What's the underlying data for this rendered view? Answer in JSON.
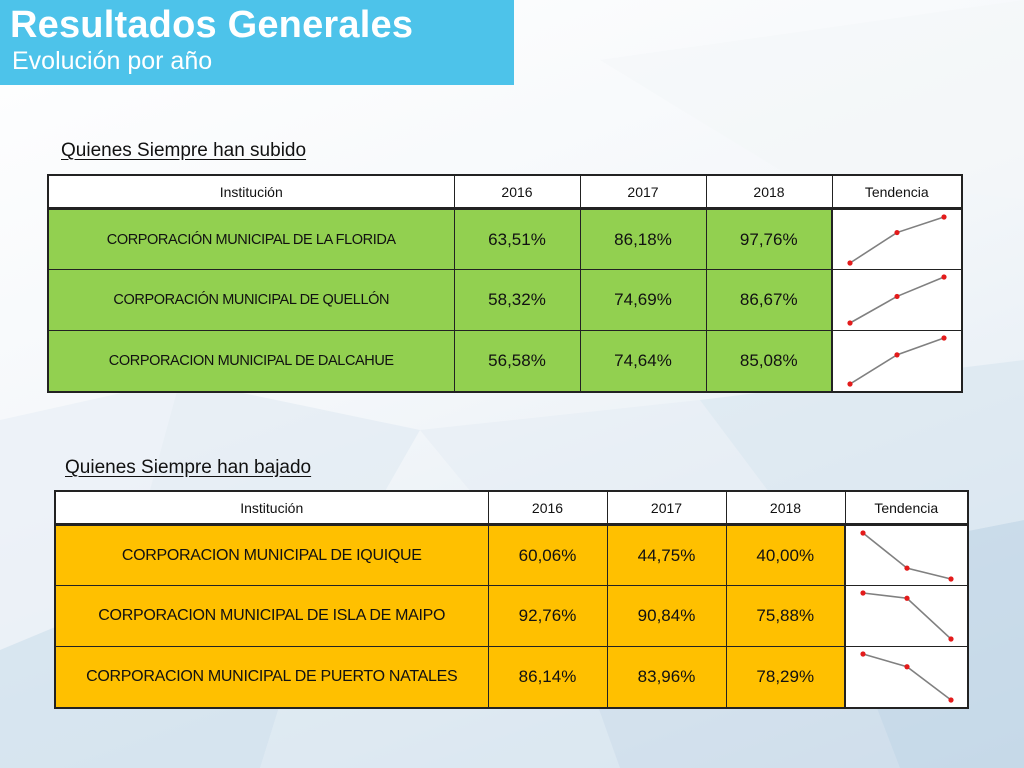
{
  "header": {
    "title": "Resultados Generales",
    "subtitle": "Evolución por año"
  },
  "sections": [
    {
      "heading": "Quienes Siempre han subido",
      "columns": [
        "Institución",
        "2016",
        "2017",
        "2018",
        "Tendencia"
      ],
      "rows": [
        {
          "institution": "CORPORACIÓN MUNICIPAL DE LA FLORIDA",
          "v2016": "63,51%",
          "v2017": "86,18%",
          "v2018": "97,76%",
          "trend": [
            63.51,
            86.18,
            97.76
          ]
        },
        {
          "institution": "CORPORACIÓN MUNICIPAL DE QUELLÓN",
          "v2016": "58,32%",
          "v2017": "74,69%",
          "v2018": "86,67%",
          "trend": [
            58.32,
            74.69,
            86.67
          ]
        },
        {
          "institution": "CORPORACION MUNICIPAL DE DALCAHUE",
          "v2016": "56,58%",
          "v2017": "74,64%",
          "v2018": "85,08%",
          "trend": [
            56.58,
            74.64,
            85.08
          ]
        }
      ],
      "row_color": "#92d050"
    },
    {
      "heading": "Quienes Siempre han bajado",
      "columns": [
        "Institución",
        "2016",
        "2017",
        "2018",
        "Tendencia"
      ],
      "rows": [
        {
          "institution": "CORPORACION MUNICIPAL DE IQUIQUE",
          "v2016": "60,06%",
          "v2017": "44,75%",
          "v2018": "40,00%",
          "trend": [
            60.06,
            44.75,
            40.0
          ]
        },
        {
          "institution": "CORPORACION MUNICIPAL DE ISLA DE MAIPO",
          "v2016": "92,76%",
          "v2017": "90,84%",
          "v2018": "75,88%",
          "trend": [
            92.76,
            90.84,
            75.88
          ]
        },
        {
          "institution": "CORPORACION MUNICIPAL DE PUERTO NATALES",
          "v2016": "86,14%",
          "v2017": "83,96%",
          "v2018": "78,29%",
          "trend": [
            86.14,
            83.96,
            78.29
          ]
        }
      ],
      "row_color": "#ffc000"
    }
  ],
  "colors": {
    "header_bg": "#4dc3ea",
    "sparkline_line": "#808080",
    "sparkline_marker": "#e31b1b"
  }
}
